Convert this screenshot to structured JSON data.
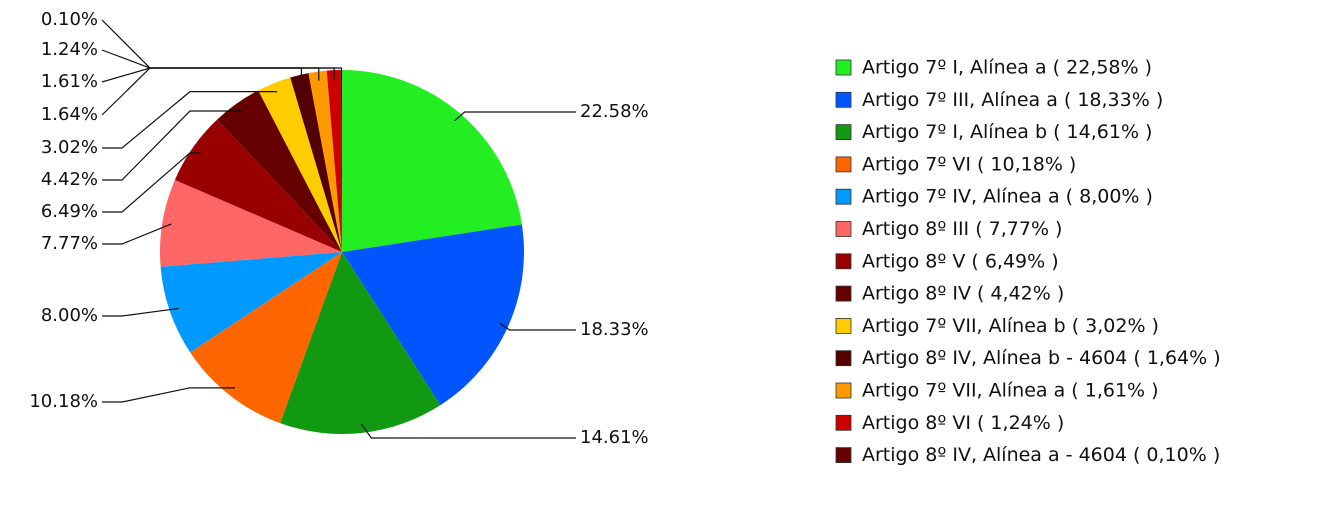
{
  "chart_data": {
    "type": "pie",
    "categories": [
      "Artigo 7º I, Alínea a   ( 22,58% )",
      "Artigo 7º III, Alínea a   ( 18,33% )",
      "Artigo 7º I, Alínea b   ( 14,61% )",
      "Artigo 7º VI   ( 10,18% )",
      "Artigo 7º IV, Alínea a   ( 8,00% )",
      "Artigo 8º III   ( 7,77% )",
      "Artigo 8º V   ( 6,49% )",
      "Artigo 8º IV   ( 4,42% )",
      "Artigo 7º VII, Alínea b   ( 3,02% )",
      "Artigo 8º IV, Alínea b - 4604   ( 1,64% )",
      "Artigo 7º VII, Alínea a   ( 1,61% )",
      "Artigo 8º VI   ( 1,24% )",
      "Artigo 8º IV, Alínea a - 4604   ( 0,10% )"
    ],
    "values": [
      22.58,
      18.33,
      14.61,
      10.18,
      8.0,
      7.77,
      6.49,
      4.42,
      3.02,
      1.64,
      1.61,
      1.24,
      0.1
    ],
    "value_labels": [
      "22.58%",
      "18.33%",
      "14.61%",
      "10.18%",
      "8.00%",
      "7.77%",
      "6.49%",
      "4.42%",
      "3.02%",
      "1.64%",
      "1.61%",
      "1.24%",
      "0.10%"
    ],
    "colors": [
      "#22ee22",
      "#0055ff",
      "#119911",
      "#ff6600",
      "#0099ff",
      "#ff6666",
      "#990000",
      "#660000",
      "#ffcc00",
      "#550000",
      "#ff9900",
      "#cc0000",
      "#660000"
    ]
  }
}
